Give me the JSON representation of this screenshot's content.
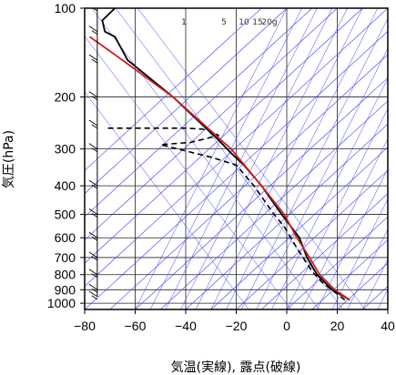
{
  "chart_data": {
    "type": "line",
    "subtype": "skew-T log-P diagram",
    "xlabel": "気温(実線), 露点(破線)",
    "ylabel": "気圧(hPa)",
    "xlim": [
      -80,
      40
    ],
    "ylim": [
      1050,
      100
    ],
    "y_scale": "log",
    "x_ticks": [
      -80,
      -60,
      -40,
      -20,
      0,
      20,
      40
    ],
    "x_tick_labels": [
      "−80",
      "−60",
      "−40",
      "−20",
      "0",
      "20",
      "40"
    ],
    "y_ticks": [
      1000,
      900,
      800,
      700,
      600,
      500,
      400,
      300,
      200,
      100
    ],
    "y_tick_labels": [
      "1000",
      "900",
      "800",
      "700",
      "600",
      "500",
      "400",
      "300",
      "200",
      "100"
    ],
    "grid": true,
    "mixing_ratio_labels": [
      "1",
      "5",
      "10",
      "15",
      "20g"
    ],
    "mixing_ratio_values": [
      1,
      5,
      10,
      15,
      20
    ],
    "colors": {
      "temperature": "#000000",
      "dewpoint": "#000000",
      "parcel": "#cc2020",
      "adiabats": "#3a3aff",
      "grid": "#222222",
      "wind": "#000000"
    },
    "series": [
      {
        "name": "",
        "style": "solid",
        "color": "#000000",
        "points": [
          [
            24.5,
            970
          ],
          [
            18,
            900
          ],
          [
            12,
            800
          ],
          [
            8,
            700
          ],
          [
            5,
            600
          ],
          [
            -2,
            500
          ],
          [
            -10,
            400
          ],
          [
            -17,
            340
          ],
          [
            -22,
            310
          ],
          [
            -27,
            280
          ],
          [
            -45,
            200
          ],
          [
            -63,
            150
          ],
          [
            -68,
            125
          ],
          [
            -72,
            120
          ],
          [
            -73,
            110
          ],
          [
            -68,
            100
          ]
        ]
      },
      {
        "name": "",
        "style": "dashed",
        "color": "#000000",
        "points": [
          [
            23,
            975
          ],
          [
            14,
            850
          ],
          [
            10,
            780
          ],
          [
            4,
            650
          ],
          [
            -1,
            550
          ],
          [
            -5,
            500
          ],
          [
            -13,
            400
          ],
          [
            -20,
            340
          ],
          [
            -30,
            320
          ],
          [
            -50,
            290
          ],
          [
            -38,
            285
          ],
          [
            -27,
            270
          ],
          [
            -31,
            258
          ],
          [
            -40,
            255
          ],
          [
            -55,
            255
          ],
          [
            -72,
            255
          ]
        ]
      },
      {
        "name": "",
        "style": "solid",
        "color": "#cc2020",
        "points": [
          [
            25,
            975
          ],
          [
            19,
            900
          ],
          [
            13,
            800
          ],
          [
            9,
            700
          ],
          [
            4,
            600
          ],
          [
            -1,
            500
          ],
          [
            -10,
            400
          ],
          [
            -22,
            300
          ],
          [
            -45,
            200
          ],
          [
            -65,
            150
          ],
          [
            -78,
            125
          ]
        ]
      }
    ],
    "wind_profile": {
      "shaft_temperature": -75,
      "pressure_levels": [
        100,
        120,
        150,
        200,
        250,
        300,
        400,
        500,
        600,
        700,
        800,
        900,
        950
      ]
    }
  }
}
